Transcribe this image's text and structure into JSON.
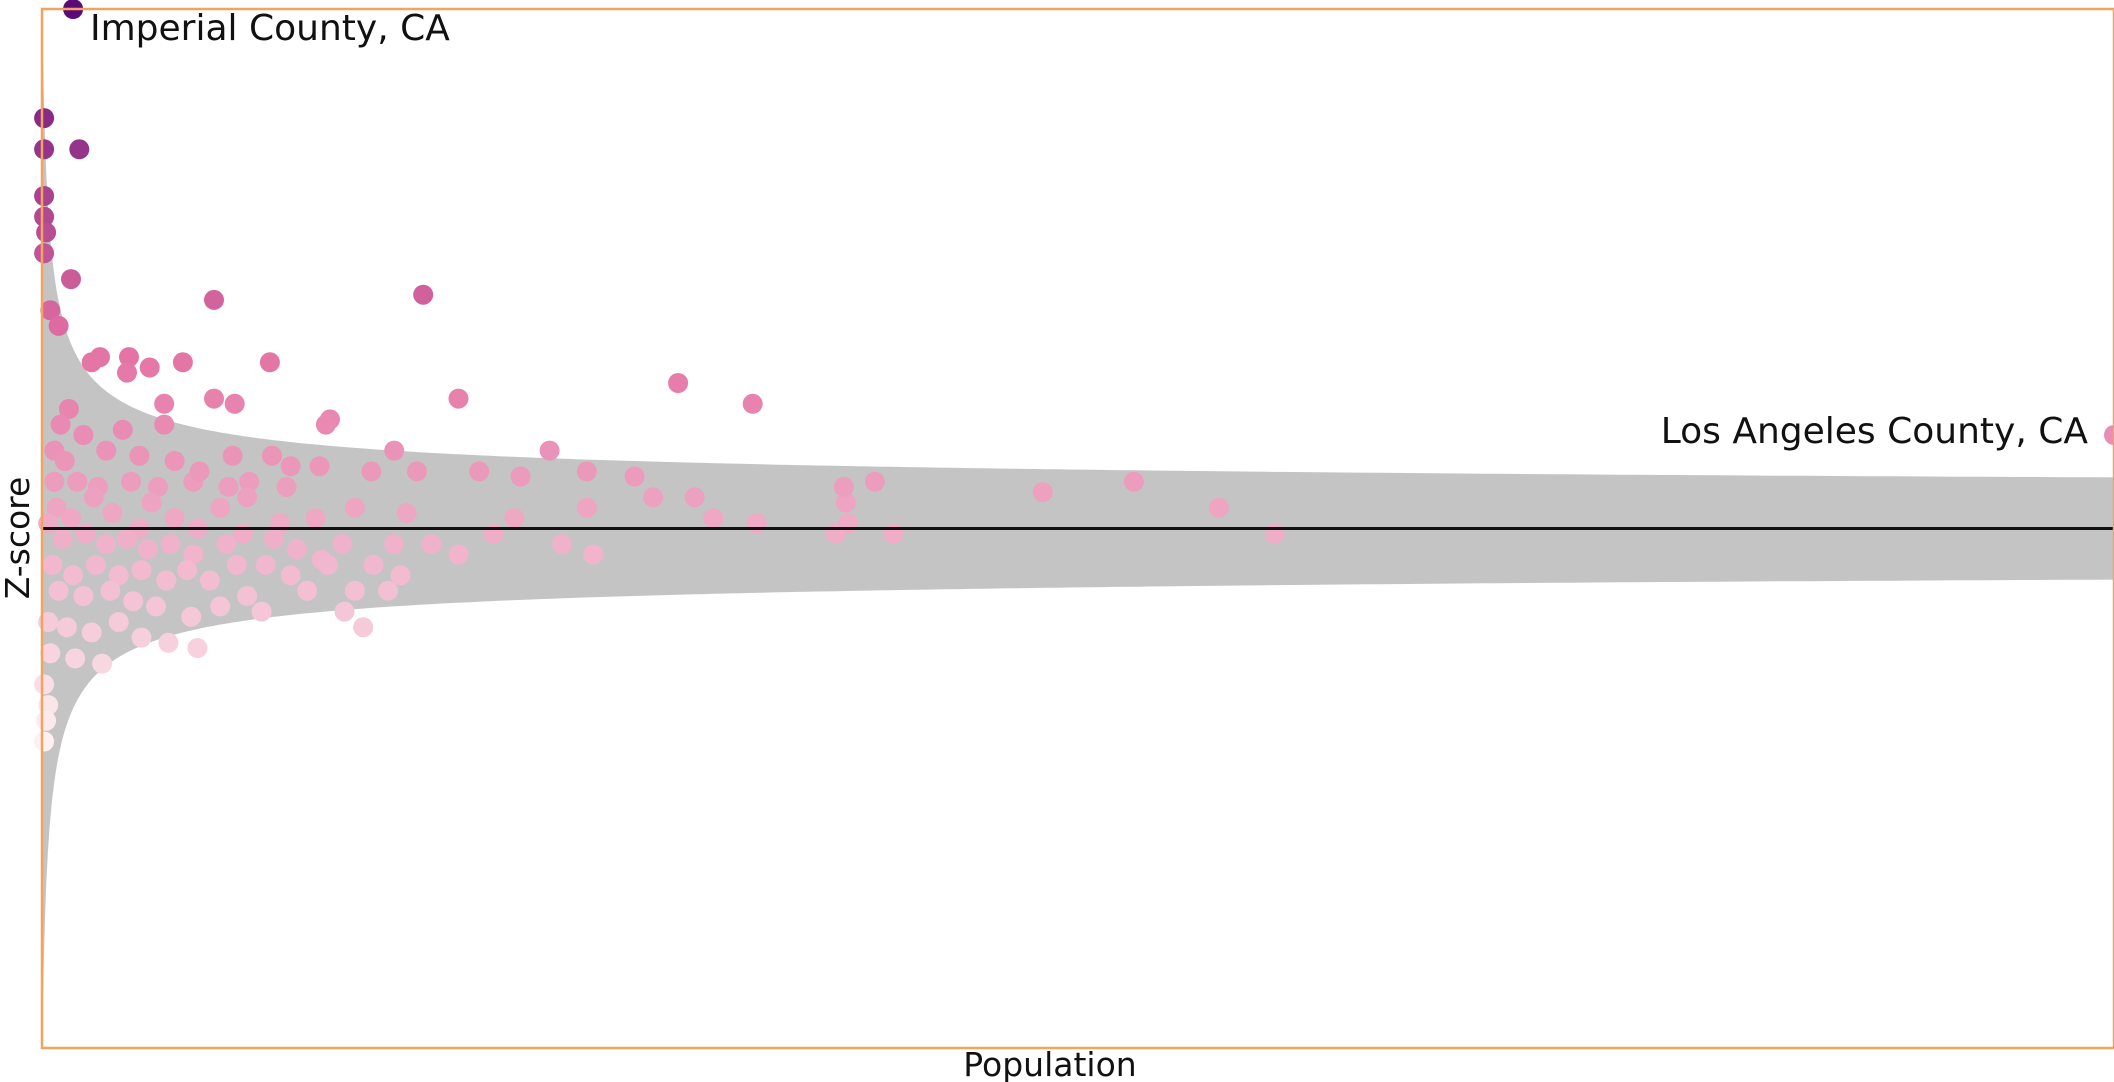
{
  "chart_data": {
    "type": "scatter",
    "title": "",
    "xlabel": "Population",
    "ylabel": "Z-score",
    "xlim": [
      0,
      1000
    ],
    "ylim": [
      -10,
      10
    ],
    "grid": false,
    "legend": "none",
    "reference_line": {
      "y": 0,
      "color": "#111111"
    },
    "control_band": {
      "color": "#c4c4c4",
      "note": "funnel-shaped confidence limits narrowing with population"
    },
    "color_scale": {
      "low": "#fdf2f1",
      "mid": "#e36fa2",
      "high": "#5b0a78"
    },
    "annotations": [
      {
        "text": "Imperial County, CA"
      },
      {
        "text": "Los Angeles County, CA"
      }
    ],
    "points": [
      {
        "x": 15,
        "y": 10.0,
        "label": "Imperial County, CA"
      },
      {
        "x": 1000,
        "y": 1.8,
        "label": "Los Angeles County, CA"
      },
      {
        "x": 1,
        "y": 7.9
      },
      {
        "x": 1,
        "y": 7.3
      },
      {
        "x": 18,
        "y": 7.3
      },
      {
        "x": 1,
        "y": 6.4
      },
      {
        "x": 1,
        "y": 6.0
      },
      {
        "x": 2,
        "y": 5.7
      },
      {
        "x": 1,
        "y": 5.3
      },
      {
        "x": 14,
        "y": 4.8
      },
      {
        "x": 83,
        "y": 4.4
      },
      {
        "x": 184,
        "y": 4.5
      },
      {
        "x": 4,
        "y": 4.2
      },
      {
        "x": 8,
        "y": 3.9
      },
      {
        "x": 42,
        "y": 3.3
      },
      {
        "x": 28,
        "y": 3.3
      },
      {
        "x": 68,
        "y": 3.2
      },
      {
        "x": 52,
        "y": 3.1
      },
      {
        "x": 24,
        "y": 3.2
      },
      {
        "x": 110,
        "y": 3.2
      },
      {
        "x": 41,
        "y": 3.0
      },
      {
        "x": 201,
        "y": 2.5
      },
      {
        "x": 307,
        "y": 2.8
      },
      {
        "x": 343,
        "y": 2.4
      },
      {
        "x": 83,
        "y": 2.5
      },
      {
        "x": 59,
        "y": 2.4
      },
      {
        "x": 93,
        "y": 2.4
      },
      {
        "x": 13,
        "y": 2.3
      },
      {
        "x": 9,
        "y": 2.0
      },
      {
        "x": 139,
        "y": 2.1
      },
      {
        "x": 59,
        "y": 2.0
      },
      {
        "x": 39,
        "y": 1.9
      },
      {
        "x": 137,
        "y": 2.0
      },
      {
        "x": 20,
        "y": 1.8
      },
      {
        "x": 170,
        "y": 1.5
      },
      {
        "x": 245,
        "y": 1.5
      },
      {
        "x": 6,
        "y": 1.5
      },
      {
        "x": 31,
        "y": 1.5
      },
      {
        "x": 111,
        "y": 1.4
      },
      {
        "x": 11,
        "y": 1.3
      },
      {
        "x": 47,
        "y": 1.4
      },
      {
        "x": 64,
        "y": 1.3
      },
      {
        "x": 92,
        "y": 1.4
      },
      {
        "x": 134,
        "y": 1.2
      },
      {
        "x": 263,
        "y": 1.1
      },
      {
        "x": 286,
        "y": 1.0
      },
      {
        "x": 211,
        "y": 1.1
      },
      {
        "x": 181,
        "y": 1.1
      },
      {
        "x": 159,
        "y": 1.1
      },
      {
        "x": 231,
        "y": 1.0
      },
      {
        "x": 6,
        "y": 0.9
      },
      {
        "x": 17,
        "y": 0.9
      },
      {
        "x": 27,
        "y": 0.8
      },
      {
        "x": 43,
        "y": 0.9
      },
      {
        "x": 56,
        "y": 0.8
      },
      {
        "x": 73,
        "y": 0.9
      },
      {
        "x": 90,
        "y": 0.8
      },
      {
        "x": 100,
        "y": 0.9
      },
      {
        "x": 118,
        "y": 0.8
      },
      {
        "x": 76,
        "y": 1.1
      },
      {
        "x": 120,
        "y": 1.2
      },
      {
        "x": 527,
        "y": 0.9
      },
      {
        "x": 315,
        "y": 0.6
      },
      {
        "x": 483,
        "y": 0.7
      },
      {
        "x": 263,
        "y": 0.4
      },
      {
        "x": 176,
        "y": 0.3
      },
      {
        "x": 324,
        "y": 0.2
      },
      {
        "x": 228,
        "y": 0.2
      },
      {
        "x": 151,
        "y": 0.4
      },
      {
        "x": 132,
        "y": 0.2
      },
      {
        "x": 115,
        "y": 0.1
      },
      {
        "x": 99,
        "y": 0.6
      },
      {
        "x": 86,
        "y": 0.4
      },
      {
        "x": 75,
        "y": 0.0
      },
      {
        "x": 64,
        "y": 0.2
      },
      {
        "x": 53,
        "y": 0.5
      },
      {
        "x": 47,
        "y": 0.0
      },
      {
        "x": 34,
        "y": 0.3
      },
      {
        "x": 25,
        "y": 0.6
      },
      {
        "x": 14,
        "y": 0.2
      },
      {
        "x": 7,
        "y": 0.4
      },
      {
        "x": 295,
        "y": 0.6
      },
      {
        "x": 345,
        "y": 0.1
      },
      {
        "x": 388,
        "y": 0.5
      },
      {
        "x": 402,
        "y": 0.9
      },
      {
        "x": 387,
        "y": 0.8
      },
      {
        "x": 568,
        "y": 0.4
      },
      {
        "x": 595,
        "y": -0.1
      },
      {
        "x": 389,
        "y": 0.1
      },
      {
        "x": 3,
        "y": 0.1
      },
      {
        "x": 10,
        "y": -0.2
      },
      {
        "x": 21,
        "y": -0.1
      },
      {
        "x": 31,
        "y": -0.3
      },
      {
        "x": 41,
        "y": -0.2
      },
      {
        "x": 51,
        "y": -0.4
      },
      {
        "x": 62,
        "y": -0.3
      },
      {
        "x": 73,
        "y": -0.5
      },
      {
        "x": 89,
        "y": -0.3
      },
      {
        "x": 97,
        "y": -0.1
      },
      {
        "x": 112,
        "y": -0.2
      },
      {
        "x": 123,
        "y": -0.4
      },
      {
        "x": 145,
        "y": -0.3
      },
      {
        "x": 135,
        "y": -0.6
      },
      {
        "x": 108,
        "y": -0.7
      },
      {
        "x": 170,
        "y": -0.3
      },
      {
        "x": 188,
        "y": -0.3
      },
      {
        "x": 201,
        "y": -0.5
      },
      {
        "x": 218,
        "y": -0.1
      },
      {
        "x": 251,
        "y": -0.3
      },
      {
        "x": 383,
        "y": -0.1
      },
      {
        "x": 411,
        "y": -0.1
      },
      {
        "x": 266,
        "y": -0.5
      },
      {
        "x": 5,
        "y": -0.7
      },
      {
        "x": 15,
        "y": -0.9
      },
      {
        "x": 26,
        "y": -0.7
      },
      {
        "x": 37,
        "y": -0.9
      },
      {
        "x": 48,
        "y": -0.8
      },
      {
        "x": 60,
        "y": -1.0
      },
      {
        "x": 70,
        "y": -0.8
      },
      {
        "x": 81,
        "y": -1.0
      },
      {
        "x": 94,
        "y": -0.7
      },
      {
        "x": 120,
        "y": -0.9
      },
      {
        "x": 138,
        "y": -0.7
      },
      {
        "x": 160,
        "y": -0.7
      },
      {
        "x": 173,
        "y": -0.9
      },
      {
        "x": 128,
        "y": -1.2
      },
      {
        "x": 151,
        "y": -1.2
      },
      {
        "x": 167,
        "y": -1.2
      },
      {
        "x": 8,
        "y": -1.2
      },
      {
        "x": 20,
        "y": -1.3
      },
      {
        "x": 33,
        "y": -1.2
      },
      {
        "x": 44,
        "y": -1.4
      },
      {
        "x": 55,
        "y": -1.5
      },
      {
        "x": 72,
        "y": -1.7
      },
      {
        "x": 86,
        "y": -1.5
      },
      {
        "x": 99,
        "y": -1.3
      },
      {
        "x": 106,
        "y": -1.6
      },
      {
        "x": 146,
        "y": -1.6
      },
      {
        "x": 155,
        "y": -1.9
      },
      {
        "x": 3,
        "y": -1.8
      },
      {
        "x": 12,
        "y": -1.9
      },
      {
        "x": 24,
        "y": -2.0
      },
      {
        "x": 37,
        "y": -1.8
      },
      {
        "x": 48,
        "y": -2.1
      },
      {
        "x": 61,
        "y": -2.2
      },
      {
        "x": 75,
        "y": -2.3
      },
      {
        "x": 4,
        "y": -2.4
      },
      {
        "x": 16,
        "y": -2.5
      },
      {
        "x": 29,
        "y": -2.6
      },
      {
        "x": 1,
        "y": -3.0
      },
      {
        "x": 3,
        "y": -3.4
      },
      {
        "x": 1,
        "y": -4.1
      },
      {
        "x": 2,
        "y": -3.7
      }
    ]
  }
}
